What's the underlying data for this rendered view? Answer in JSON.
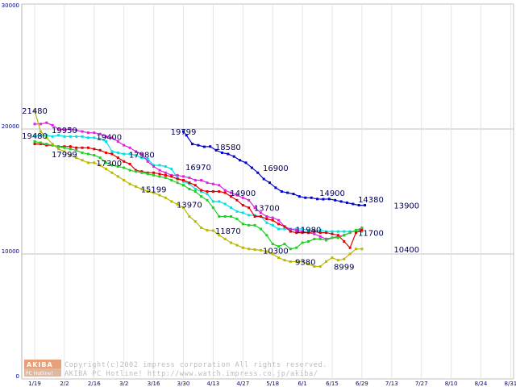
{
  "chart_data": {
    "type": "line",
    "ylim": [
      0,
      30000
    ],
    "y_ticks": [
      "0",
      "10000",
      "20000",
      "30000"
    ],
    "x_ticks": [
      "1/19",
      "2/2",
      "2/16",
      "3/2",
      "3/16",
      "3/30",
      "4/13",
      "4/27",
      "5/18",
      "6/1",
      "6/15",
      "6/29",
      "7/13",
      "7/27",
      "8/10",
      "8/24",
      "8/31"
    ],
    "grid": true,
    "colors": {
      "navy": "#0000cc",
      "cyan": "#00e0e0",
      "magenta": "#e020e0",
      "red": "#e00000",
      "green": "#20d020",
      "olive": "#b8b800"
    },
    "series": [
      {
        "color_key": "navy",
        "x": [
          10.0,
          10.2,
          10.6,
          11.0,
          11.4,
          11.8,
          12.2,
          12.6,
          13.0,
          13.4,
          13.8,
          14.2,
          14.6,
          15.0,
          15.4,
          15.8,
          16.2,
          16.6,
          17.0,
          17.4,
          17.8,
          18.2,
          18.6,
          19.0,
          19.4,
          19.8,
          20.2,
          20.6,
          21.0,
          21.4,
          21.8,
          22.2
        ],
        "values": [
          19799,
          19500,
          18800,
          18700,
          18580,
          18600,
          18300,
          18100,
          18000,
          17800,
          17500,
          17300,
          16900,
          16500,
          16000,
          15700,
          15300,
          15000,
          14900,
          14800,
          14600,
          14500,
          14500,
          14400,
          14380,
          14400,
          14300,
          14200,
          14100,
          14000,
          13900,
          13900
        ]
      },
      {
        "color_key": "cyan",
        "x": [
          0,
          0.4,
          0.8,
          1.2,
          1.6,
          2.0,
          2.4,
          2.8,
          3.2,
          3.6,
          4.0,
          4.4,
          4.8,
          5.2,
          5.6,
          6.0,
          6.4,
          6.8,
          7.2,
          7.6,
          8.0,
          8.4,
          8.8,
          9.2,
          9.6,
          10.0,
          10.4,
          10.8,
          11.2,
          11.6,
          12.0,
          12.4,
          12.8,
          13.2,
          13.6,
          14.0,
          14.4,
          14.8,
          15.2,
          15.6,
          16.0,
          16.4,
          16.8,
          17.2,
          17.6,
          18.0,
          18.4,
          18.8,
          19.2,
          19.6,
          20.0,
          20.4,
          20.8,
          21.2,
          21.6,
          22.0
        ],
        "values": [
          19480,
          19480,
          19500,
          19400,
          19500,
          19400,
          19400,
          19400,
          19400,
          19300,
          19300,
          19200,
          19000,
          18200,
          18100,
          18000,
          18000,
          17900,
          17700,
          17600,
          17100,
          17100,
          17000,
          16800,
          16100,
          15800,
          15600,
          15200,
          15000,
          14800,
          14200,
          14200,
          14000,
          13700,
          13400,
          13300,
          13100,
          13100,
          13000,
          12500,
          12300,
          12000,
          12000,
          12000,
          12000,
          12000,
          11900,
          11900,
          11900,
          11800,
          11800,
          11800,
          11800,
          11800,
          11800,
          11800
        ]
      },
      {
        "color_key": "magenta",
        "x": [
          0,
          0.4,
          0.8,
          1.2,
          1.6,
          2.0,
          2.4,
          2.8,
          3.2,
          3.6,
          4.0,
          4.4,
          4.8,
          5.2,
          5.6,
          6.0,
          6.4,
          6.8,
          7.2,
          7.6,
          8.0,
          8.4,
          8.8,
          9.2,
          9.6,
          10.0,
          10.4,
          10.8,
          11.2,
          11.6,
          12.0,
          12.4,
          12.8,
          13.2,
          13.6,
          14.0,
          14.4,
          14.8,
          15.2,
          15.6,
          16.0,
          16.4,
          16.8,
          17.2,
          17.6,
          18.0,
          18.4,
          18.8,
          19.2,
          19.6,
          20.0,
          20.4,
          20.8,
          21.2,
          21.6,
          22.0
        ],
        "values": [
          20400,
          20400,
          20500,
          20300,
          20000,
          19950,
          20000,
          19900,
          19800,
          19700,
          19700,
          19600,
          19400,
          19300,
          19000,
          18700,
          18500,
          18200,
          17980,
          17400,
          17000,
          16700,
          16500,
          16300,
          16300,
          16200,
          16100,
          15900,
          15900,
          15700,
          15600,
          15500,
          15100,
          14900,
          14700,
          14500,
          14300,
          13700,
          13300,
          13000,
          12900,
          12700,
          12200,
          11980,
          11900,
          11800,
          11700,
          11600,
          11400,
          11200,
          11300,
          11400,
          11500,
          11700,
          11900,
          12000
        ]
      },
      {
        "color_key": "red",
        "x": [
          0,
          0.4,
          0.8,
          1.2,
          1.6,
          2.0,
          2.4,
          2.8,
          3.2,
          3.6,
          4.0,
          4.4,
          4.8,
          5.2,
          5.6,
          6.0,
          6.4,
          6.8,
          7.2,
          7.6,
          8.0,
          8.4,
          8.8,
          9.2,
          9.6,
          10.0,
          10.4,
          10.8,
          11.2,
          11.6,
          12.0,
          12.4,
          12.8,
          13.2,
          13.6,
          14.0,
          14.4,
          14.8,
          15.2,
          15.6,
          16.0,
          16.4,
          16.8,
          17.2,
          17.6,
          18.0,
          18.4,
          18.8,
          19.2,
          19.6,
          20.0,
          20.4,
          20.8,
          21.2,
          21.6,
          22.0
        ],
        "values": [
          18800,
          18800,
          18700,
          18700,
          18600,
          18600,
          18600,
          18500,
          18500,
          18500,
          18400,
          18300,
          18100,
          18000,
          17700,
          17400,
          17200,
          16700,
          16600,
          16500,
          16500,
          16400,
          16300,
          16200,
          16000,
          15900,
          15700,
          15500,
          15100,
          15000,
          15000,
          15000,
          14900,
          14600,
          14300,
          13900,
          13700,
          13000,
          13000,
          12800,
          12700,
          12400,
          12200,
          11800,
          11700,
          11700,
          11700,
          11800,
          11700,
          11700,
          11600,
          11500,
          11000,
          10500,
          11700,
          11900
        ]
      },
      {
        "color_key": "green",
        "x": [
          0,
          0.4,
          0.8,
          1.2,
          1.6,
          2.0,
          2.4,
          2.8,
          3.2,
          3.6,
          4.0,
          4.4,
          4.8,
          5.2,
          5.6,
          6.0,
          6.4,
          6.8,
          7.2,
          7.6,
          8.0,
          8.4,
          8.8,
          9.2,
          9.6,
          10.0,
          10.4,
          10.8,
          11.2,
          11.6,
          12.0,
          12.4,
          12.8,
          13.2,
          13.6,
          14.0,
          14.4,
          14.8,
          15.2,
          15.6,
          16.0,
          16.4,
          16.8,
          17.2,
          17.6,
          18.0,
          18.4,
          18.8,
          19.2,
          19.6,
          20.0,
          20.4,
          20.8,
          21.2,
          21.6,
          22.0
        ],
        "values": [
          19000,
          18900,
          18800,
          18700,
          18600,
          18500,
          18400,
          18300,
          18100,
          17999,
          17900,
          17700,
          17300,
          17100,
          17000,
          16900,
          16700,
          16600,
          16500,
          16400,
          16300,
          16200,
          16100,
          15900,
          15700,
          15500,
          15200,
          15000,
          14600,
          14300,
          13700,
          13000,
          13000,
          13000,
          12800,
          12400,
          12300,
          12300,
          12000,
          11500,
          10800,
          10600,
          10800,
          10400,
          10500,
          10900,
          11000,
          11200,
          11200,
          11100,
          11300,
          11300,
          11500,
          11700,
          11900,
          12100
        ]
      },
      {
        "color_key": "olive",
        "x": [
          0,
          0.4,
          0.8,
          1.2,
          1.6,
          2.0,
          2.4,
          2.8,
          3.2,
          3.6,
          4.0,
          4.4,
          4.8,
          5.2,
          5.6,
          6.0,
          6.4,
          6.8,
          7.2,
          7.6,
          8.0,
          8.4,
          8.8,
          9.2,
          9.6,
          10.0,
          10.4,
          10.8,
          11.2,
          11.6,
          12.0,
          12.4,
          12.8,
          13.2,
          13.6,
          14.0,
          14.4,
          14.8,
          15.2,
          15.6,
          16.0,
          16.4,
          16.8,
          17.2,
          17.6,
          18.0,
          18.4,
          18.8,
          19.2,
          19.6,
          20.0,
          20.4,
          20.8,
          21.2,
          21.6,
          22.0
        ],
        "values": [
          21480,
          19800,
          19300,
          18800,
          18400,
          18200,
          17900,
          17700,
          17500,
          17300,
          17300,
          17100,
          16800,
          16500,
          16200,
          15900,
          15600,
          15400,
          15199,
          15000,
          14900,
          14700,
          14500,
          14200,
          13970,
          13700,
          13000,
          12600,
          12100,
          11900,
          11870,
          11500,
          11200,
          10900,
          10700,
          10500,
          10400,
          10350,
          10300,
          10200,
          10000,
          9700,
          9500,
          9380,
          9400,
          9400,
          9200,
          9000,
          8999,
          9400,
          9700,
          9500,
          9600,
          10000,
          10400,
          10400
        ]
      }
    ],
    "annotations": [
      {
        "text": "21480",
        "x": 0.0,
        "y": 21480
      },
      {
        "text": "19480",
        "x": 0.0,
        "y": 19480
      },
      {
        "text": "19950",
        "x": 2.0,
        "y": 19950
      },
      {
        "text": "17999",
        "x": 2.0,
        "y": 17999
      },
      {
        "text": "19400",
        "x": 5.0,
        "y": 19400
      },
      {
        "text": "17300",
        "x": 5.0,
        "y": 17300
      },
      {
        "text": "17980",
        "x": 7.2,
        "y": 17980
      },
      {
        "text": "15199",
        "x": 8.0,
        "y": 15199
      },
      {
        "text": "19799",
        "x": 10.0,
        "y": 19799
      },
      {
        "text": "16970",
        "x": 11.0,
        "y": 16970
      },
      {
        "text": "13970",
        "x": 10.4,
        "y": 13970
      },
      {
        "text": "18580",
        "x": 13.0,
        "y": 18580
      },
      {
        "text": "14900",
        "x": 14.0,
        "y": 14900
      },
      {
        "text": "13700",
        "x": 15.6,
        "y": 13700
      },
      {
        "text": "11870",
        "x": 13.0,
        "y": 11870
      },
      {
        "text": "16900",
        "x": 16.2,
        "y": 16900
      },
      {
        "text": "10300",
        "x": 16.2,
        "y": 10300
      },
      {
        "text": "11980",
        "x": 18.4,
        "y": 11980
      },
      {
        "text": "9380",
        "x": 18.2,
        "y": 9380
      },
      {
        "text": "14900",
        "x": 20.0,
        "y": 14900
      },
      {
        "text": "8999",
        "x": 20.8,
        "y": 8999
      },
      {
        "text": "14380",
        "x": 22.6,
        "y": 14380
      },
      {
        "text": "11700",
        "x": 22.6,
        "y": 11700
      },
      {
        "text": "13900",
        "x": 25.0,
        "y": 13900
      },
      {
        "text": "10400",
        "x": 25.0,
        "y": 10400
      }
    ],
    "copyright_lines": [
      "Copyright(c)2002 impress corporation All rights reserved.",
      "AKIBA PC Hotline!  http://www.watch.impress.co.jp/akiba/"
    ],
    "logo": {
      "top": "AKIBA",
      "bottom": "PC Hotline!"
    }
  }
}
